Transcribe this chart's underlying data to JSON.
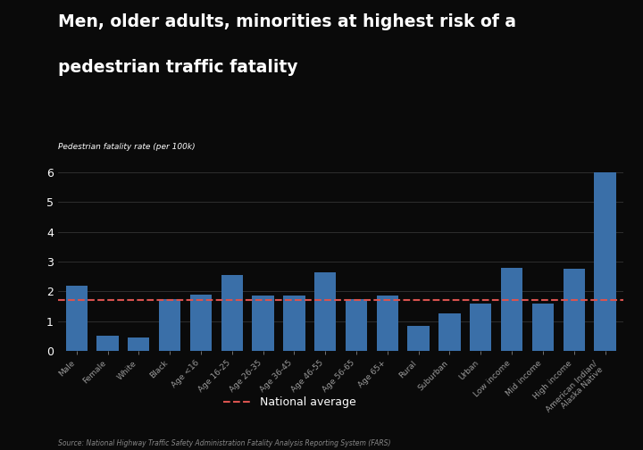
{
  "title_line1": "Men, older adults, minorities at highest risk of a",
  "title_line2": "pedestrian traffic fatality",
  "ylabel": "Pedestrian fatality rate (per 100k)",
  "source": "Source: National Highway Traffic Safety Administration Fatality Analysis Reporting System (FARS)",
  "legend_label": "National average",
  "national_average": 1.7,
  "bar_color": "#3a6fa8",
  "national_avg_color": "#d9534f",
  "fig_bg": "#0a0a0a",
  "ax_bg": "#0a0a0a",
  "text_color": "#ffffff",
  "tick_color": "#999999",
  "grid_color": "#333333",
  "source_color": "#888888",
  "categories": [
    "Male",
    "Female",
    "White",
    "Black",
    "Age <16",
    "Age 16-25",
    "Age 26-35",
    "Age 36-45",
    "Age 46-55",
    "Age 56-65",
    "Age 65+",
    "Rural",
    "Suburban",
    "Urban",
    "Low income",
    "Mid income",
    "High income",
    "American Indian/\nAlaska Native"
  ],
  "values": [
    2.2,
    0.5,
    0.45,
    1.75,
    1.9,
    2.55,
    1.85,
    1.85,
    2.65,
    1.75,
    1.85,
    0.85,
    1.25,
    1.6,
    2.8,
    1.6,
    2.75,
    6.0
  ],
  "ylim_max": 6.5,
  "yticks": [
    0,
    1,
    2,
    3,
    4,
    5,
    6
  ]
}
